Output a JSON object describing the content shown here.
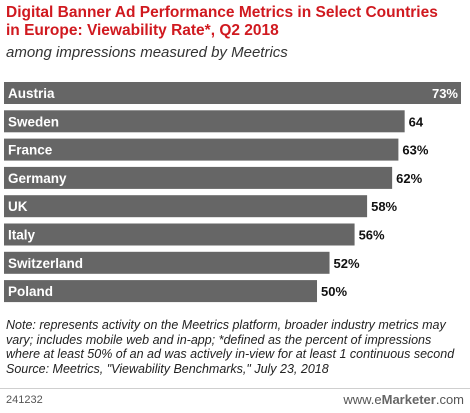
{
  "chart_data": {
    "type": "bar",
    "orientation": "horizontal",
    "title": "Digital Banner Ad Performance Metrics in Select Countries in Europe: Viewability Rate*, Q2 2018",
    "subtitle": "among impressions measured by Meetrics",
    "categories": [
      "Austria",
      "Sweden",
      "France",
      "Germany",
      "UK",
      "Italy",
      "Switzerland",
      "Poland"
    ],
    "values": [
      73,
      64,
      63,
      62,
      58,
      56,
      52,
      50
    ],
    "value_labels": [
      "73%",
      "64",
      "63%",
      "62%",
      "58%",
      "56%",
      "52%",
      "50%"
    ],
    "xlim": [
      0,
      73
    ],
    "bar_color": "#666666",
    "grid": false,
    "legend": "none"
  },
  "notes": {
    "note": "Note: represents activity on the Meetrics platform, broader industry metrics may vary; includes mobile web and in-app; *defined as the percent of impressions where at least 50% of an ad was actively in-view for at least 1 continuous second",
    "source": "Source: Meetrics, \"Viewability Benchmarks,\" July 23, 2018"
  },
  "footer": {
    "chart_id": "241232",
    "brand_prefix": "www.",
    "brand_e": "e",
    "brand_main": "Marketer",
    "brand_suffix": ".com"
  },
  "colors": {
    "title": "#d0191f",
    "bar": "#666666",
    "separator": "#cfcfcf"
  }
}
